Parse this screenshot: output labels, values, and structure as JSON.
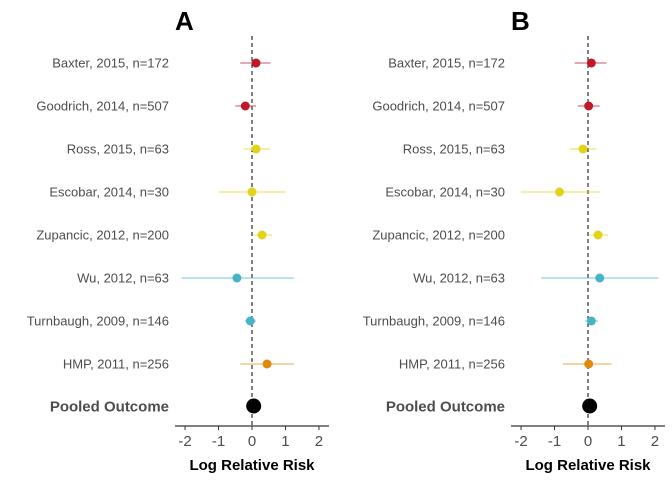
{
  "chart_data": [
    {
      "type": "forest",
      "title": "A",
      "xlabel": "Log Relative Risk",
      "xlim": [
        -2.3,
        2.3
      ],
      "xticks": [
        "-2",
        "-1",
        "0",
        "1",
        "2"
      ],
      "reference_line": 0,
      "grid": false,
      "studies": [
        {
          "label": "Baxter, 2015, n=172",
          "estimate": 0.12,
          "ci": [
            -0.35,
            0.55
          ],
          "color": "#C0182A"
        },
        {
          "label": "Goodrich, 2014, n=507",
          "estimate": -0.2,
          "ci": [
            -0.5,
            0.12
          ],
          "color": "#C0182A"
        },
        {
          "label": "Ross, 2015, n=63",
          "estimate": 0.12,
          "ci": [
            -0.25,
            0.55
          ],
          "color": "#E3D21B"
        },
        {
          "label": "Escobar, 2014, n=30",
          "estimate": 0.0,
          "ci": [
            -1.0,
            1.0
          ],
          "color": "#E3D21B"
        },
        {
          "label": "Zupancic, 2012, n=200",
          "estimate": 0.3,
          "ci": [
            0.05,
            0.6
          ],
          "color": "#E3D21B"
        },
        {
          "label": "Wu, 2012, n=63",
          "estimate": -0.45,
          "ci": [
            -2.1,
            1.25
          ],
          "color": "#46B3CB"
        },
        {
          "label": "Turnbaugh, 2009, n=146",
          "estimate": -0.05,
          "ci": [
            -0.22,
            0.12
          ],
          "color": "#46B3CB"
        },
        {
          "label": "HMP, 2011, n=256",
          "estimate": 0.45,
          "ci": [
            -0.35,
            1.25
          ],
          "color": "#E08A0B"
        }
      ],
      "pooled": {
        "label": "Pooled Outcome",
        "estimate": 0.05,
        "color": "#000000"
      }
    },
    {
      "type": "forest",
      "title": "B",
      "xlabel": "Log Relative Risk",
      "xlim": [
        -2.3,
        2.3
      ],
      "xticks": [
        "-2",
        "-1",
        "0",
        "1",
        "2"
      ],
      "reference_line": 0,
      "grid": false,
      "studies": [
        {
          "label": "Baxter, 2015, n=172",
          "estimate": 0.1,
          "ci": [
            -0.4,
            0.55
          ],
          "color": "#C0182A"
        },
        {
          "label": "Goodrich, 2014, n=507",
          "estimate": 0.02,
          "ci": [
            -0.3,
            0.35
          ],
          "color": "#C0182A"
        },
        {
          "label": "Ross, 2015, n=63",
          "estimate": -0.15,
          "ci": [
            -0.55,
            0.25
          ],
          "color": "#E3D21B"
        },
        {
          "label": "Escobar, 2014, n=30",
          "estimate": -0.85,
          "ci": [
            -2.0,
            0.35
          ],
          "color": "#E3D21B"
        },
        {
          "label": "Zupancic, 2012, n=200",
          "estimate": 0.3,
          "ci": [
            0.05,
            0.6
          ],
          "color": "#E3D21B"
        },
        {
          "label": "Wu, 2012, n=63",
          "estimate": 0.35,
          "ci": [
            -1.4,
            2.1
          ],
          "color": "#46B3CB"
        },
        {
          "label": "Turnbaugh, 2009, n=146",
          "estimate": 0.1,
          "ci": [
            -0.1,
            0.3
          ],
          "color": "#46B3CB"
        },
        {
          "label": "HMP, 2011, n=256",
          "estimate": 0.02,
          "ci": [
            -0.75,
            0.7
          ],
          "color": "#E08A0B"
        }
      ],
      "pooled": {
        "label": "Pooled Outcome",
        "estimate": 0.05,
        "color": "#000000"
      }
    }
  ]
}
